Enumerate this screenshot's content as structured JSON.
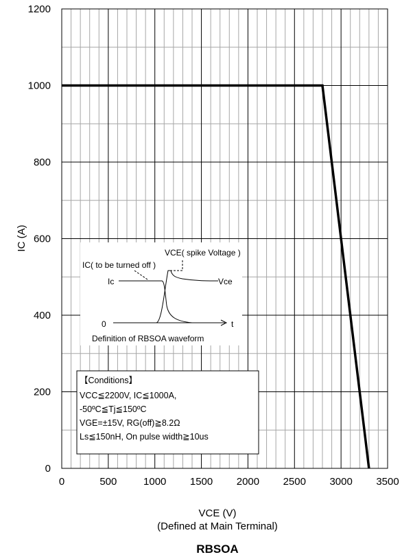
{
  "chart_data": {
    "type": "line",
    "title": "RBSOA",
    "xlabel": "VCE (V)",
    "xlabel_sub": "(Defined at Main Terminal)",
    "ylabel": "IC (A)",
    "xlim": [
      0,
      3500
    ],
    "ylim": [
      0,
      1200
    ],
    "x_ticks": [
      0,
      500,
      1000,
      1500,
      2000,
      2500,
      3000,
      3500
    ],
    "y_ticks": [
      0,
      200,
      400,
      600,
      800,
      1000,
      1200
    ],
    "grid": true,
    "series": [
      {
        "x": [
          0,
          2800,
          3300
        ],
        "y": [
          1000,
          1000,
          0
        ]
      }
    ],
    "inset": {
      "label_vce_spike": "VCE( spike Voltage )",
      "label_ic_off": "IC( to be turned off )",
      "label_ic": "Ic",
      "label_vce": "Vce",
      "label_zero": "0",
      "label_t": "t",
      "caption": "Definition of RBSOA waveform"
    },
    "conditions": {
      "heading": "【Conditions】",
      "lines": [
        "VCC≦2200V, IC≦1000A,",
        "-50ºC≦Tj≦150ºC",
        "VGE=±15V, RG(off)≧8.2Ω",
        "Ls≦150nH, On pulse width≧10us"
      ]
    }
  },
  "colors": {
    "line": "#000000",
    "grid_major": "#000000",
    "grid_minor": "#a6a6a6",
    "background": "#ffffff"
  }
}
